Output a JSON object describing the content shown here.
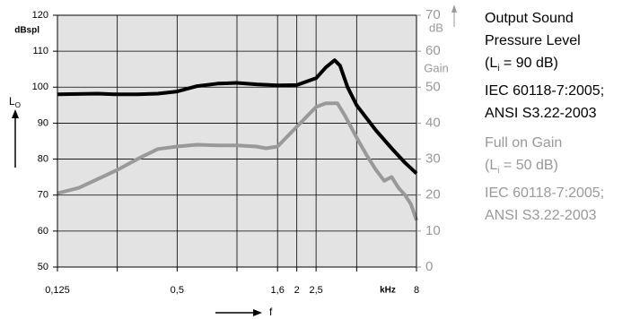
{
  "chart_data": {
    "type": "line",
    "ylabel": "L",
    "ylabel_sub": "O",
    "yunit": "dBspl",
    "y2unit": "dB",
    "y2label": "Gain",
    "xlabel": "f",
    "xunit": "kHz",
    "xlog": true,
    "xlim": [
      0.125,
      8
    ],
    "xticks": [
      {
        "value": 0.125,
        "label": "0,125"
      },
      {
        "value": 0.25,
        "label": null
      },
      {
        "value": 0.5,
        "label": "0,5"
      },
      {
        "value": 1,
        "label": null
      },
      {
        "value": 1.6,
        "label": "1,6"
      },
      2,
      {
        "value": 2.5,
        "label": "2,5"
      },
      {
        "value": 4,
        "label": null
      },
      8
    ],
    "ylim": [
      50,
      120
    ],
    "yticks": [
      50,
      60,
      70,
      80,
      90,
      100,
      110,
      120
    ],
    "y2lim": [
      0,
      70
    ],
    "y2ticks": [
      0,
      10,
      20,
      30,
      40,
      50,
      60,
      70
    ],
    "grid": true,
    "series": [
      {
        "name": "Output Sound Pressure Level",
        "color": "#000000",
        "cond": {
          "pre": "(L",
          "sub": "i",
          "post": " = 90 dB)"
        },
        "lines": [
          "IEC 60118-7:2005;",
          "ANSI S3.22-2003"
        ],
        "x": [
          0.125,
          0.2,
          0.25,
          0.315,
          0.4,
          0.5,
          0.63,
          0.8,
          1,
          1.25,
          1.6,
          2,
          2.5,
          2.8,
          3.1,
          3.3,
          3.6,
          4,
          5,
          6,
          7,
          8
        ],
        "values": [
          98,
          98.2,
          98,
          98,
          98.2,
          98.8,
          100.3,
          101,
          101.2,
          100.8,
          100.5,
          100.6,
          102.5,
          105.5,
          107.5,
          106,
          100,
          95,
          88,
          83,
          79,
          76
        ]
      },
      {
        "name": "Full on Gain",
        "color": "#999999",
        "axis": "y2",
        "cond": {
          "pre": "(L",
          "sub": "i",
          "post": " = 50 dB)"
        },
        "lines": [
          "IEC 60118-7:2005;",
          "ANSI S3.22-2003"
        ],
        "x": [
          0.125,
          0.16,
          0.2,
          0.25,
          0.315,
          0.4,
          0.5,
          0.63,
          0.8,
          1,
          1.25,
          1.4,
          1.6,
          2,
          2.5,
          2.8,
          3.2,
          3.5,
          4,
          4.5,
          5,
          5.5,
          6,
          6.5,
          7,
          7.5,
          8
        ],
        "values": [
          20.5,
          22,
          24.5,
          27,
          30,
          32.8,
          33.5,
          34,
          33.8,
          33.8,
          33.5,
          33,
          33.5,
          39,
          44.5,
          45.5,
          45.5,
          42,
          36,
          31,
          27,
          24,
          25,
          22,
          20,
          17.5,
          13
        ]
      }
    ]
  }
}
